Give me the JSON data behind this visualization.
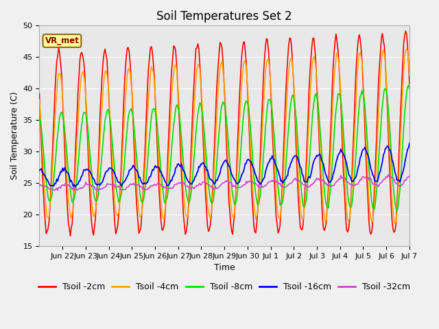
{
  "title": "Soil Temperatures Set 2",
  "xlabel": "Time",
  "ylabel": "Soil Temperature (C)",
  "ylim": [
    15,
    50
  ],
  "annotation": "VR_met",
  "series": [
    {
      "label": "Tsoil -2cm",
      "color": "#ff0000"
    },
    {
      "label": "Tsoil -4cm",
      "color": "#ffa500"
    },
    {
      "label": "Tsoil -8cm",
      "color": "#00dd00"
    },
    {
      "label": "Tsoil -16cm",
      "color": "#0000ee"
    },
    {
      "label": "Tsoil -32cm",
      "color": "#cc44cc"
    }
  ],
  "xtick_labels": [
    "Jun 22",
    "Jun 23",
    "Jun 24",
    "Jun 25",
    "Jun 26",
    "Jun 27",
    "Jun 28",
    "Jun 29",
    "Jun 30",
    "Jul 1",
    "Jul 2",
    "Jul 3",
    "Jul 4",
    "Jul 5",
    "Jul 6",
    "Jul 7"
  ],
  "fig_bg_color": "#f0f0f0",
  "plot_bg_color": "#e8e8e8",
  "grid_color": "#ffffff",
  "title_fontsize": 12,
  "label_fontsize": 9,
  "tick_fontsize": 8,
  "legend_fontsize": 9
}
